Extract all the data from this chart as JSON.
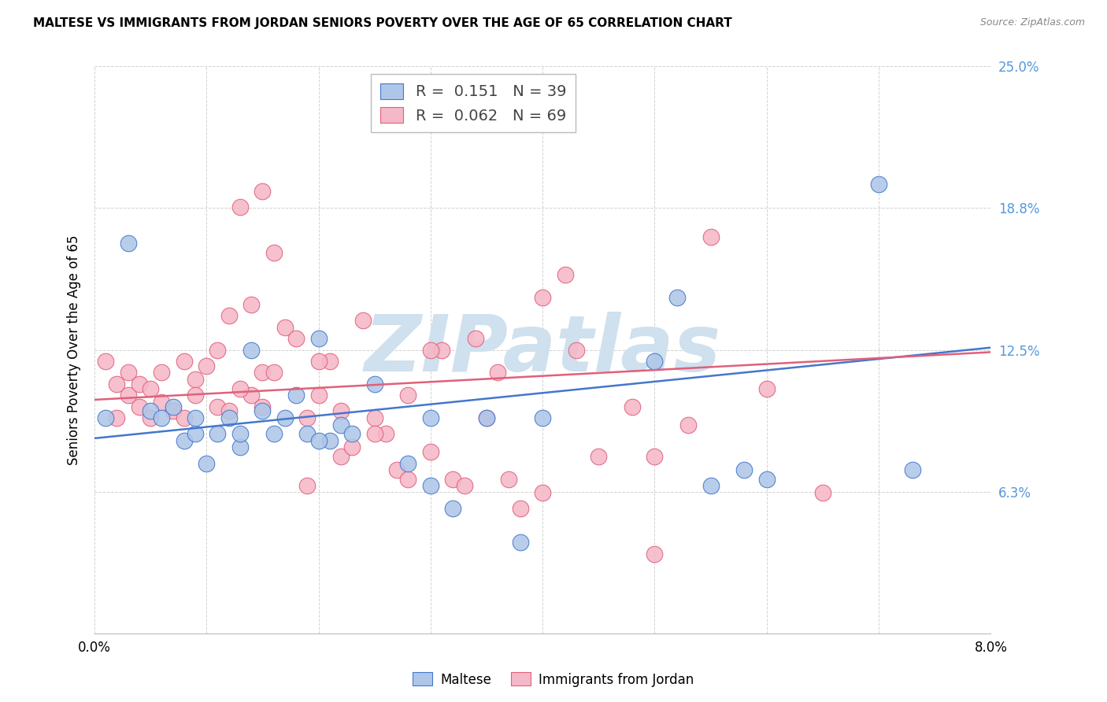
{
  "title": "MALTESE VS IMMIGRANTS FROM JORDAN SENIORS POVERTY OVER THE AGE OF 65 CORRELATION CHART",
  "source": "Source: ZipAtlas.com",
  "ylabel": "Seniors Poverty Over the Age of 65",
  "xmin": 0.0,
  "xmax": 0.08,
  "ymin": 0.0,
  "ymax": 0.25,
  "yticks": [
    0.0,
    0.0625,
    0.125,
    0.1875,
    0.25
  ],
  "ytick_labels": [
    "",
    "6.3%",
    "12.5%",
    "18.8%",
    "25.0%"
  ],
  "xticks": [
    0.0,
    0.01,
    0.02,
    0.03,
    0.04,
    0.05,
    0.06,
    0.07,
    0.08
  ],
  "xtick_labels": [
    "0.0%",
    "",
    "",
    "",
    "",
    "",
    "",
    "",
    "8.0%"
  ],
  "legend_blue_R": "0.151",
  "legend_blue_N": "39",
  "legend_pink_R": "0.062",
  "legend_pink_N": "69",
  "legend_label_blue": "Maltese",
  "legend_label_pink": "Immigrants from Jordan",
  "blue_color": "#aec6e8",
  "pink_color": "#f5b8c8",
  "trendline_blue": "#4477cc",
  "trendline_pink": "#e0607a",
  "watermark": "ZIPatlas",
  "watermark_color": "#cfe0ee",
  "blue_x": [
    0.001,
    0.003,
    0.005,
    0.006,
    0.007,
    0.008,
    0.009,
    0.01,
    0.011,
    0.012,
    0.013,
    0.014,
    0.015,
    0.016,
    0.017,
    0.018,
    0.019,
    0.02,
    0.021,
    0.022,
    0.023,
    0.025,
    0.028,
    0.03,
    0.032,
    0.035,
    0.038,
    0.04,
    0.05,
    0.052,
    0.055,
    0.058,
    0.06,
    0.07,
    0.073,
    0.009,
    0.013,
    0.02,
    0.03
  ],
  "blue_y": [
    0.095,
    0.172,
    0.098,
    0.095,
    0.1,
    0.085,
    0.088,
    0.075,
    0.088,
    0.095,
    0.082,
    0.125,
    0.098,
    0.088,
    0.095,
    0.105,
    0.088,
    0.13,
    0.085,
    0.092,
    0.088,
    0.11,
    0.075,
    0.065,
    0.055,
    0.095,
    0.04,
    0.095,
    0.12,
    0.148,
    0.065,
    0.072,
    0.068,
    0.198,
    0.072,
    0.095,
    0.088,
    0.085,
    0.095
  ],
  "pink_x": [
    0.001,
    0.002,
    0.003,
    0.003,
    0.004,
    0.005,
    0.006,
    0.006,
    0.007,
    0.008,
    0.008,
    0.009,
    0.01,
    0.011,
    0.012,
    0.012,
    0.013,
    0.014,
    0.014,
    0.015,
    0.015,
    0.016,
    0.017,
    0.018,
    0.019,
    0.02,
    0.021,
    0.022,
    0.023,
    0.024,
    0.025,
    0.026,
    0.027,
    0.028,
    0.03,
    0.031,
    0.032,
    0.034,
    0.035,
    0.037,
    0.038,
    0.04,
    0.042,
    0.045,
    0.048,
    0.05,
    0.053,
    0.055,
    0.06,
    0.065,
    0.002,
    0.004,
    0.005,
    0.009,
    0.011,
    0.013,
    0.015,
    0.016,
    0.019,
    0.02,
    0.022,
    0.025,
    0.028,
    0.03,
    0.033,
    0.036,
    0.04,
    0.043,
    0.05
  ],
  "pink_y": [
    0.12,
    0.11,
    0.105,
    0.115,
    0.1,
    0.095,
    0.102,
    0.115,
    0.098,
    0.095,
    0.12,
    0.112,
    0.118,
    0.1,
    0.098,
    0.14,
    0.188,
    0.105,
    0.145,
    0.1,
    0.195,
    0.168,
    0.135,
    0.13,
    0.065,
    0.105,
    0.12,
    0.078,
    0.082,
    0.138,
    0.095,
    0.088,
    0.072,
    0.068,
    0.08,
    0.125,
    0.068,
    0.13,
    0.095,
    0.068,
    0.055,
    0.148,
    0.158,
    0.078,
    0.1,
    0.078,
    0.092,
    0.175,
    0.108,
    0.062,
    0.095,
    0.11,
    0.108,
    0.105,
    0.125,
    0.108,
    0.115,
    0.115,
    0.095,
    0.12,
    0.098,
    0.088,
    0.105,
    0.125,
    0.065,
    0.115,
    0.062,
    0.125,
    0.035
  ],
  "blue_trendline_y0": 0.086,
  "blue_trendline_y1": 0.126,
  "pink_trendline_y0": 0.103,
  "pink_trendline_y1": 0.124
}
